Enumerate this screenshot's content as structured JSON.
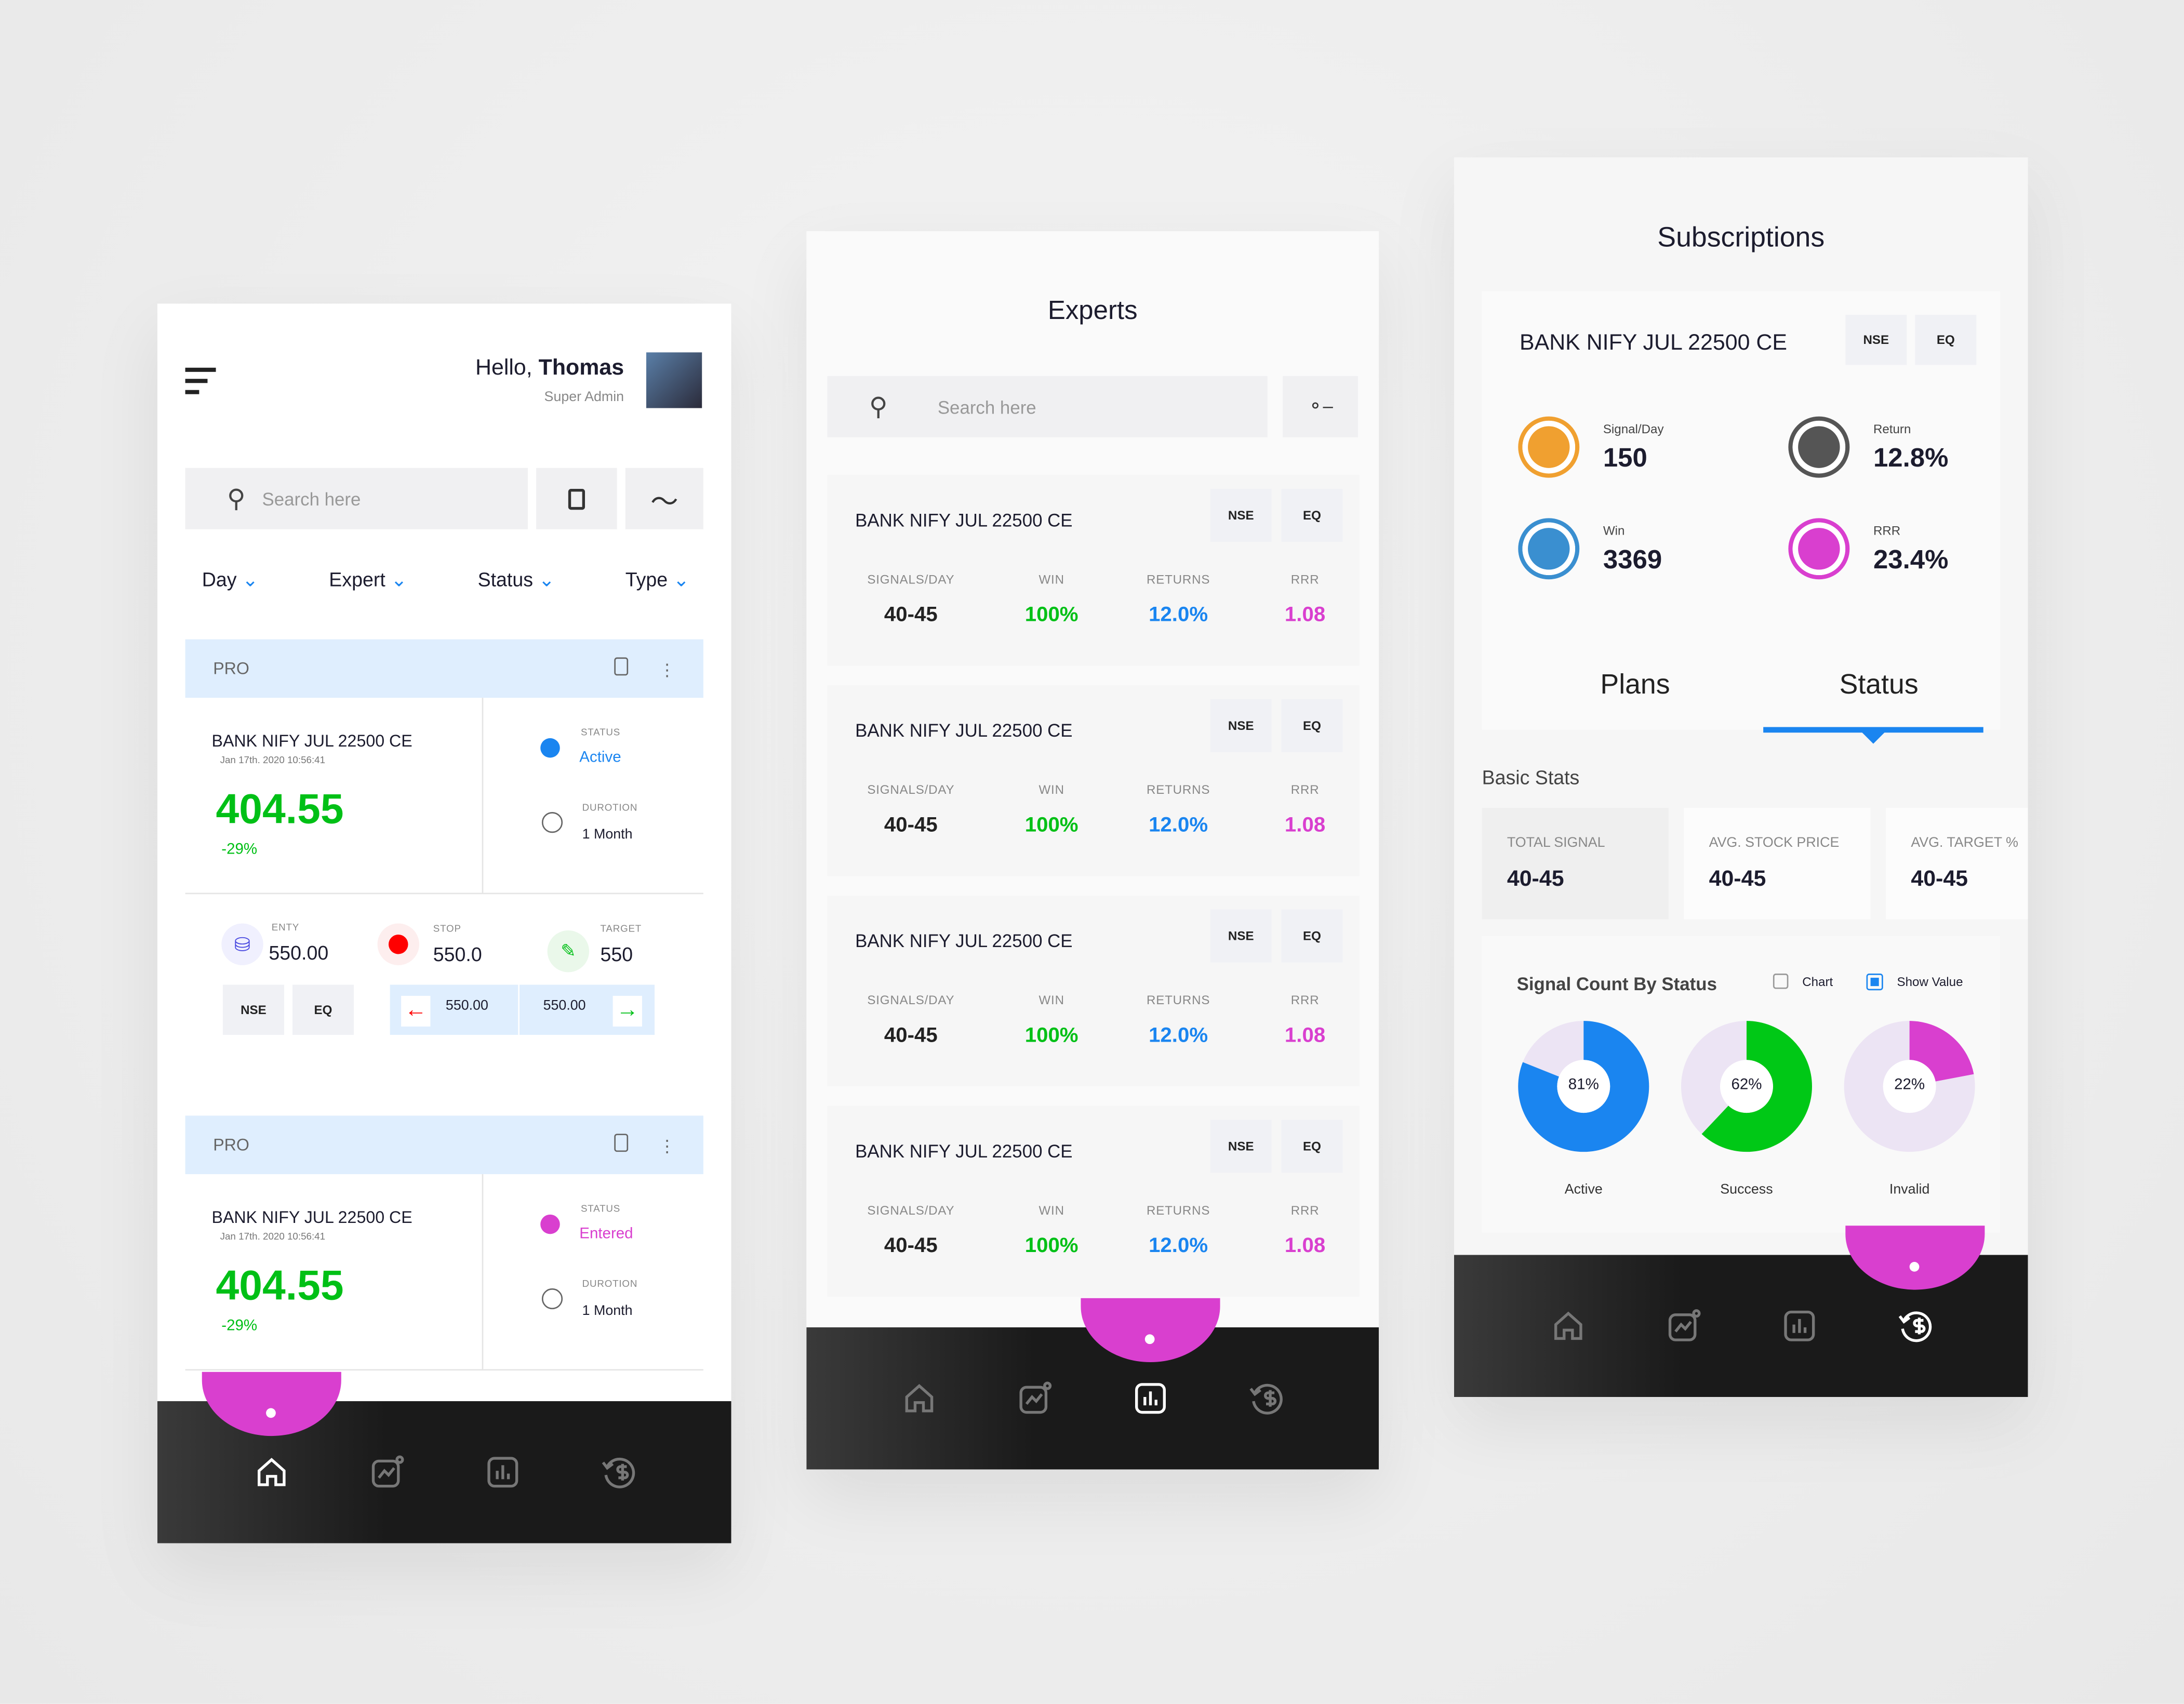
{
  "colors": {
    "accent_blue": "#1a85f0",
    "green": "#00c016",
    "magenta": "#d93fcf",
    "dark_nav": "#1a1a1a"
  },
  "nav_icons": [
    "home-icon",
    "chart-line-icon",
    "bar-chart-icon",
    "dollar-refresh-icon"
  ],
  "left": {
    "greeting": "Hello,",
    "user_name": "Thomas",
    "role": "Super Admin",
    "search_placeholder": "Search here",
    "filters": [
      "Day",
      "Expert",
      "Status",
      "Type"
    ],
    "signals": [
      {
        "tier": "PRO",
        "symbol": "BANK NIFY JUL 22500 CE",
        "timestamp": "Jan 17th. 2020 10:56:41",
        "price": "404.55",
        "change": "-29%",
        "status_label": "STATUS",
        "status": "Active",
        "status_color": "#1a85f0",
        "duration_label": "DUROTION",
        "duration": "1 Month",
        "entry_label": "ENTY",
        "entry": "550.00",
        "stop_label": "STOP",
        "stop": "550.0",
        "target_label": "TARGET",
        "target": "550",
        "exchange": "NSE",
        "segment": "EQ",
        "range_low": "550.00",
        "range_high": "550.00"
      },
      {
        "tier": "PRO",
        "symbol": "BANK NIFY JUL 22500 CE",
        "timestamp": "Jan 17th. 2020 10:56:41",
        "price": "404.55",
        "change": "-29%",
        "status_label": "STATUS",
        "status": "Entered",
        "status_color": "#d93fcf",
        "duration_label": "DUROTION",
        "duration": "1 Month"
      }
    ],
    "active_nav": 0
  },
  "middle": {
    "title": "Experts",
    "search_placeholder": "Search here",
    "col_labels": [
      "SIGNALS/DAY",
      "WIN",
      "RETURNS",
      "RRR"
    ],
    "cards": [
      {
        "symbol": "BANK NIFY JUL 22500 CE",
        "exchange": "NSE",
        "segment": "EQ",
        "signals": "40-45",
        "win": "100%",
        "returns": "12.0%",
        "rrr": "1.08"
      },
      {
        "symbol": "BANK NIFY JUL 22500 CE",
        "exchange": "NSE",
        "segment": "EQ",
        "signals": "40-45",
        "win": "100%",
        "returns": "12.0%",
        "rrr": "1.08"
      },
      {
        "symbol": "BANK NIFY JUL 22500 CE",
        "exchange": "NSE",
        "segment": "EQ",
        "signals": "40-45",
        "win": "100%",
        "returns": "12.0%",
        "rrr": "1.08"
      },
      {
        "symbol": "BANK NIFY JUL 22500 CE",
        "exchange": "NSE",
        "segment": "EQ",
        "signals": "40-45",
        "win": "100%",
        "returns": "12.0%",
        "rrr": "1.08"
      }
    ],
    "active_nav": 2
  },
  "right": {
    "title": "Subscriptions",
    "symbol": "BANK NIFY JUL 22500 CE",
    "exchange": "NSE",
    "segment": "EQ",
    "metrics": [
      {
        "label": "Signal/Day",
        "value": "150",
        "icon": "trend-icon",
        "color": "#f0a030"
      },
      {
        "label": "Return",
        "value": "12.8%",
        "icon": "return-icon",
        "color": "#555555"
      },
      {
        "label": "Win",
        "value": "3369",
        "icon": "trophy-icon",
        "color": "#3a8fd0"
      },
      {
        "label": "RRR",
        "value": "23.4%",
        "icon": "warning-icon",
        "color": "#d93fcf"
      }
    ],
    "tabs": [
      "Plans",
      "Status"
    ],
    "active_tab": 1,
    "basic_stats_title": "Basic Stats",
    "basic_stats": [
      {
        "label": "TOTAL SIGNAL",
        "value": "40-45"
      },
      {
        "label": "AVG. STOCK PRICE",
        "value": "40-45"
      },
      {
        "label": "AVG. TARGET %",
        "value": "40-45"
      }
    ],
    "active_nav": 3
  },
  "chart_data": {
    "type": "pie",
    "title": "Signal Count By Status",
    "toggles": [
      {
        "label": "Chart",
        "checked": false
      },
      {
        "label": "Show Value",
        "checked": true
      }
    ],
    "series": [
      {
        "name": "Active",
        "value": 81,
        "label": "81%",
        "color": "#1a85f0"
      },
      {
        "name": "Success",
        "value": 62,
        "label": "62%",
        "color": "#00c816"
      },
      {
        "name": "Invalid",
        "value": 22,
        "label": "22%",
        "color": "#d93fcf"
      }
    ]
  }
}
